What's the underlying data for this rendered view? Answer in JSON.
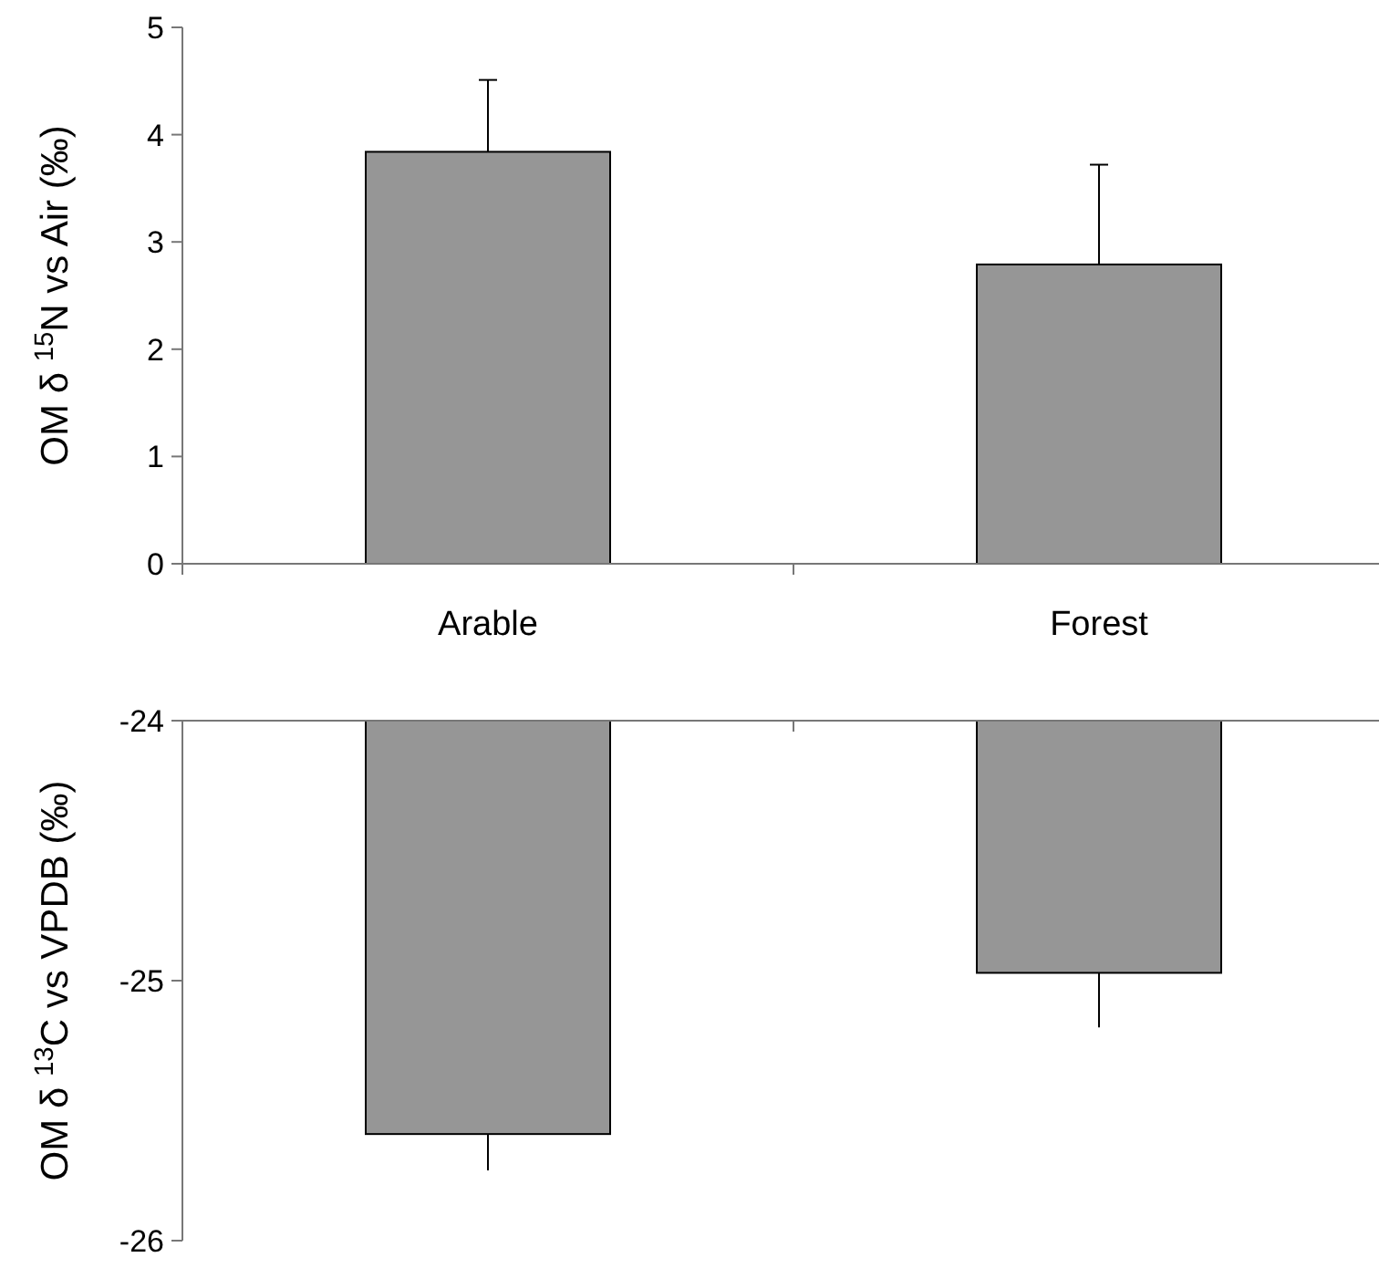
{
  "chart_data": [
    {
      "type": "bar",
      "categories": [
        "Arable",
        "Forest"
      ],
      "values": [
        3.84,
        2.79
      ],
      "errors": [
        [
          3.84,
          4.51
        ],
        [
          2.79,
          3.72
        ]
      ],
      "color": "#969696",
      "ylim": [
        0,
        5
      ],
      "yticks": [
        0,
        1,
        2,
        3,
        4,
        5
      ],
      "ylabel": "OM δ $^{15}$N vs Air (‰)",
      "grid": false
    },
    {
      "type": "bar",
      "categories": [
        null,
        null
      ],
      "values": [
        -25.59,
        -24.97
      ],
      "errors": [
        [
          -25.73,
          -25.59
        ],
        [
          -25.18,
          -24.97
        ]
      ],
      "color": "#969696",
      "ylim": [
        -26,
        -24
      ],
      "yticks": [
        -26,
        -25,
        -24
      ],
      "ylabel": "OM δ $^{13}$C vs VPDB (‰)",
      "grid": false,
      "tick_labels": "y"
    }
  ]
}
